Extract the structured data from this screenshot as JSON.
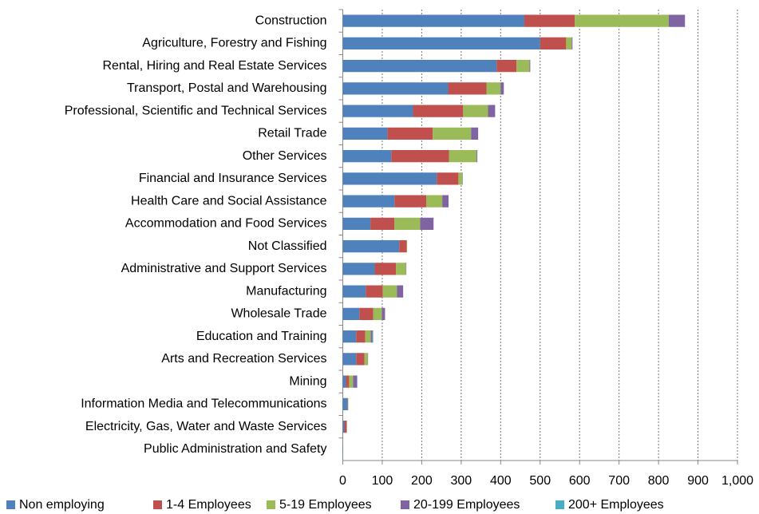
{
  "chart_data": {
    "type": "stacked-barh",
    "categories": [
      "Construction",
      "Agriculture, Forestry and Fishing",
      "Rental, Hiring and Real Estate Services",
      "Transport, Postal and Warehousing",
      "Professional, Scientific and Technical Services",
      "Retail Trade",
      "Other Services",
      "Financial and Insurance Services",
      "Health Care and Social Assistance",
      "Accommodation and Food Services",
      "Not Classified",
      "Administrative and Support Services",
      "Manufacturing",
      "Wholesale Trade",
      "Education and Training",
      "Arts and Recreation Services",
      "Mining",
      "Information Media and Telecommunications",
      "Electricity, Gas, Water and Waste Services",
      "Public Administration and Safety"
    ],
    "series": [
      {
        "name": "Non employing",
        "color": "#4f81bd",
        "values": [
          460,
          500,
          390,
          267,
          178,
          113,
          123,
          238,
          131,
          70,
          143,
          81,
          58,
          42,
          34,
          34,
          8,
          12,
          4,
          1
        ]
      },
      {
        "name": "1-4 Employees",
        "color": "#c0504d",
        "values": [
          128,
          66,
          50,
          97,
          127,
          115,
          146,
          55,
          81,
          61,
          19,
          54,
          43,
          35,
          23,
          21,
          8,
          1,
          6,
          0
        ]
      },
      {
        "name": "5-19 Employees",
        "color": "#9bbb59",
        "values": [
          238,
          14,
          33,
          36,
          63,
          97,
          70,
          10,
          40,
          65,
          1,
          25,
          36,
          22,
          14,
          8,
          10,
          1,
          0.5,
          0
        ]
      },
      {
        "name": "20-199 Employees",
        "color": "#8064a2",
        "values": [
          41,
          2,
          2,
          8,
          18,
          18,
          2,
          1,
          16,
          34,
          0,
          1,
          16,
          8,
          4,
          1,
          10,
          0,
          0,
          0
        ]
      },
      {
        "name": "200+ Employees",
        "color": "#4bacc6",
        "values": [
          0,
          0,
          0,
          0,
          0,
          0,
          0,
          0,
          0,
          0,
          0,
          0,
          0,
          0,
          2,
          0,
          1,
          0,
          0,
          0
        ]
      }
    ],
    "xlim": [
      0,
      1000
    ],
    "xticks": [
      0,
      100,
      200,
      300,
      400,
      500,
      600,
      700,
      800,
      900,
      {
        "value": 1000,
        "label": "1,000"
      }
    ],
    "grid": true
  }
}
